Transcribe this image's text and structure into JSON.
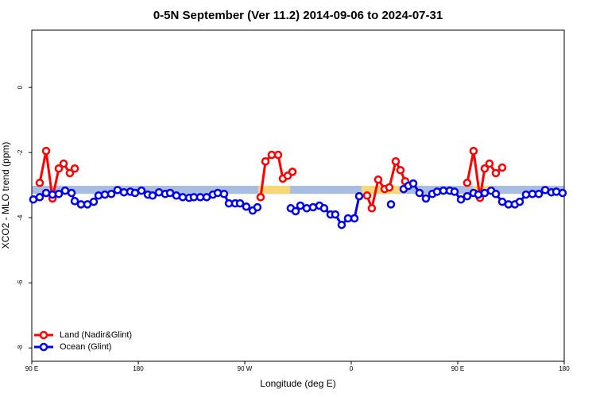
{
  "chart_data": {
    "type": "line",
    "title": "0-5N September (Ver 11.2)   2014-09-06 to 2024-07-31",
    "x_label": "Longitude (deg E)",
    "y_label": "XCO2 - MLO trend (ppm)",
    "xlim": [
      90,
      540
    ],
    "xticks": [
      {
        "value": 90,
        "label": "90 E"
      },
      180,
      {
        "value": 270,
        "label": "90 W"
      },
      {
        "value": 360,
        "label": "0"
      },
      {
        "value": 450,
        "label": "90 E"
      },
      {
        "value": 540,
        "label": "180"
      }
    ],
    "ylim": [
      -8.41,
      1.76
    ],
    "yticks": [
      0,
      -2,
      -4,
      -6,
      -8
    ],
    "legend": "bottom-left",
    "band": {
      "color": "#a9bde0",
      "range": [
        -3.27,
        -3.02
      ]
    },
    "land_spans": {
      "color": "#f6d77a",
      "spans": [
        [
          281.4,
          308.3
        ],
        [
          368.7,
          402.3
        ],
        [
          462.8,
          479.6
        ]
      ]
    },
    "series": [
      {
        "name": "Land (Nadir&Glint)",
        "color": "#ff0000",
        "x": [
          96.7,
          102.1,
          107.5,
          112.8,
          116.9,
          122.2,
          126.3,
          197.5,
          283.4,
          287.5,
          292.8,
          298.2,
          302.2,
          306.3,
          310.3,
          345.2,
          373.4,
          377.4,
          382.8,
          388.2,
          392.2,
          397.6,
          401.6,
          405.6,
          432.5,
          458.0,
          463.4,
          468.8,
          472.8,
          476.8,
          482.2,
          487.6
        ],
        "values": [
          -2.93,
          -1.95,
          -3.41,
          -2.49,
          -2.34,
          -2.63,
          -2.49,
          null,
          -3.37,
          -2.27,
          -2.07,
          -2.07,
          -2.8,
          -2.71,
          -2.59,
          null,
          -3.32,
          -3.71,
          -2.83,
          -3.12,
          -3.07,
          -2.27,
          -2.54,
          -2.88,
          null,
          -2.93,
          -1.95,
          -3.39,
          -2.49,
          -2.34,
          -2.63,
          -2.46
        ]
      },
      {
        "name": "Ocean (Glint)",
        "color": "#0000ee",
        "x": [
          91.3,
          96.7,
          102.1,
          107.5,
          112.8,
          118.2,
          123.6,
          126.3,
          131.6,
          137.0,
          142.4,
          146.4,
          151.8,
          157.2,
          162.5,
          167.9,
          173.3,
          177.3,
          182.7,
          188.1,
          192.1,
          197.5,
          202.8,
          206.9,
          212.2,
          217.6,
          223.0,
          227.0,
          232.4,
          237.8,
          243.1,
          247.2,
          252.5,
          256.6,
          261.9,
          266.0,
          271.3,
          276.7,
          280.7,
          294.8,
          308.9,
          313.0,
          317.0,
          322.4,
          327.7,
          333.1,
          337.1,
          342.5,
          346.5,
          351.9,
          357.3,
          362.7,
          366.7,
          380.1,
          393.6,
          398.9,
          404.3,
          408.3,
          412.4,
          417.7,
          423.1,
          428.5,
          432.5,
          437.9,
          443.3,
          447.3,
          452.7,
          458.0,
          463.4,
          467.4,
          472.8,
          478.2,
          482.2,
          487.6,
          492.9,
          498.3,
          502.4,
          507.7,
          513.1,
          518.5,
          523.9,
          529.2,
          533.3,
          538.6
        ],
        "values": [
          -3.44,
          -3.37,
          -3.24,
          -3.29,
          -3.27,
          -3.17,
          -3.24,
          -3.49,
          -3.59,
          -3.59,
          -3.51,
          -3.32,
          -3.29,
          -3.27,
          -3.15,
          -3.22,
          -3.2,
          -3.24,
          -3.17,
          -3.29,
          -3.32,
          -3.22,
          -3.27,
          -3.24,
          -3.32,
          -3.37,
          -3.39,
          -3.37,
          -3.37,
          -3.37,
          -3.29,
          -3.24,
          -3.27,
          -3.56,
          -3.56,
          -3.56,
          -3.66,
          -3.78,
          -3.68,
          null,
          -3.71,
          -3.8,
          -3.63,
          -3.71,
          -3.68,
          -3.63,
          -3.71,
          -3.9,
          -3.9,
          -4.22,
          -4.02,
          -4.02,
          -3.34,
          null,
          -3.59,
          null,
          -3.12,
          -3.02,
          -2.95,
          -3.24,
          -3.41,
          -3.27,
          -3.2,
          -3.17,
          -3.17,
          -3.2,
          -3.44,
          -3.34,
          -3.24,
          -3.29,
          -3.24,
          -3.17,
          -3.27,
          -3.51,
          -3.59,
          -3.59,
          -3.51,
          -3.29,
          -3.27,
          -3.27,
          -3.15,
          -3.22,
          -3.2,
          -3.24
        ]
      }
    ]
  }
}
